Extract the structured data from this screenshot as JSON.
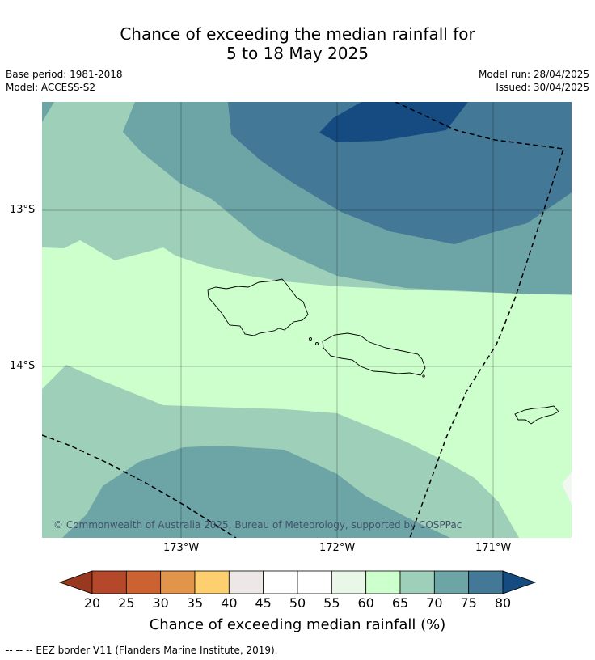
{
  "title_line1": "Chance of exceeding the median rainfall for",
  "title_line2": "5 to 18 May 2025",
  "base_period": "Base period: 1981-2018",
  "model": "Model: ACCESS-S2",
  "model_run": "Model run: 28/04/2025",
  "issued": "Issued: 30/04/2025",
  "copyright": "© Commonwealth of Australia 2025, Bureau of Meteorology, supported by COSPPac",
  "lat_labels": [
    "13°S",
    "14°S"
  ],
  "lon_labels": [
    "173°W",
    "172°W",
    "171°W"
  ],
  "colorbar": {
    "title": "Chance of exceeding median rainfall (%)",
    "ticks": [
      "20",
      "25",
      "30",
      "35",
      "40",
      "45",
      "50",
      "55",
      "60",
      "65",
      "70",
      "75",
      "80"
    ],
    "colors": [
      "#b5472a",
      "#cc6232",
      "#e1944a",
      "#fdcf6e",
      "#ede8e5",
      "#ffffff",
      "#ffffff",
      "#e9f7e9",
      "#ccffcc",
      "#9ecfb8",
      "#6da4a6",
      "#437896"
    ],
    "under_color": "#98391f",
    "over_color": "#164b82"
  },
  "footer": "--  --  -- EEZ border V11 (Flanders Marine Institute, 2019)."
}
